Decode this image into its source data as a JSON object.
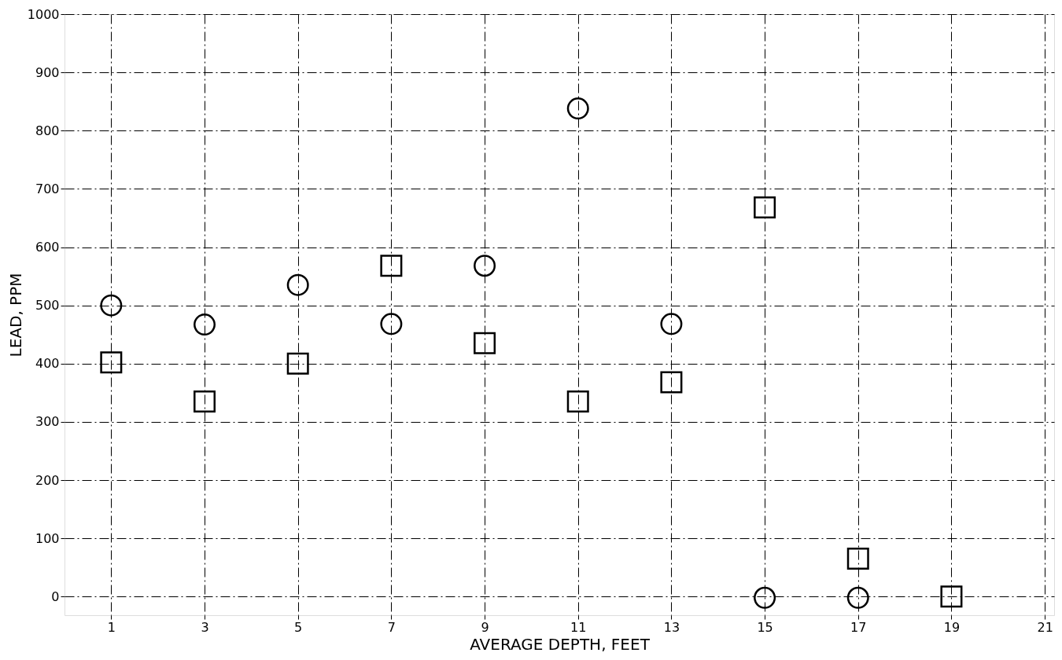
{
  "chart_data": {
    "type": "scatter",
    "xlabel": "AVERAGE DEPTH, FEET",
    "ylabel": "LEAD, PPM",
    "xlim": [
      0,
      21.2
    ],
    "ylim": [
      -32,
      1000
    ],
    "xticks": [
      1,
      3,
      5,
      7,
      9,
      11,
      13,
      15,
      17,
      19,
      21
    ],
    "yticks": [
      0,
      100,
      200,
      300,
      400,
      500,
      600,
      700,
      800,
      900,
      1000
    ],
    "grid": true,
    "line_style": "dashed",
    "series": [
      {
        "color": "#000000",
        "marker": "circle",
        "x": [
          1,
          3,
          5,
          7,
          9,
          11,
          13,
          15,
          17
        ],
        "values": [
          500,
          467,
          535,
          468,
          568,
          838,
          468,
          -2,
          -2
        ]
      },
      {
        "color": "#000000",
        "marker": "square",
        "x": [
          1,
          3,
          5,
          7,
          9,
          11,
          13,
          15,
          17,
          19
        ],
        "values": [
          402,
          335,
          400,
          568,
          435,
          335,
          368,
          668,
          65,
          0
        ]
      }
    ]
  }
}
